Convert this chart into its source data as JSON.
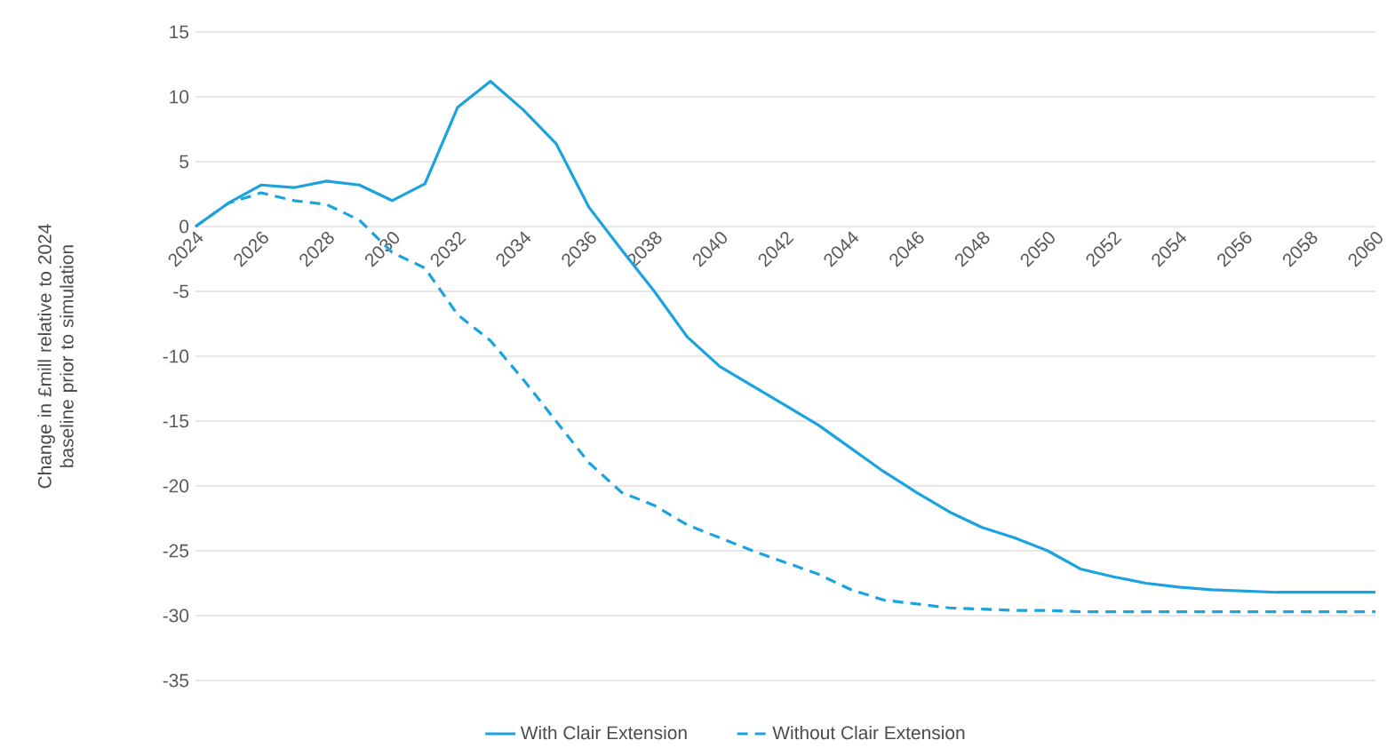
{
  "chart_data": {
    "type": "line",
    "ylabel": "Change in £mill relative to 2024 baseline prior to simulation",
    "x": [
      2024,
      2025,
      2026,
      2027,
      2028,
      2029,
      2030,
      2031,
      2032,
      2033,
      2034,
      2035,
      2036,
      2037,
      2038,
      2039,
      2040,
      2041,
      2042,
      2043,
      2044,
      2045,
      2046,
      2047,
      2048,
      2049,
      2050,
      2051,
      2052,
      2053,
      2054,
      2055,
      2056,
      2057,
      2058,
      2059,
      2060
    ],
    "series": [
      {
        "name": "With Clair Extension",
        "color": "#1aa3df",
        "line_style": "solid",
        "values": [
          0,
          1.8,
          3.2,
          3.0,
          3.5,
          3.2,
          2.0,
          3.3,
          9.2,
          11.2,
          9.0,
          6.4,
          1.5,
          -1.8,
          -5,
          -8.5,
          -10.8,
          -12.3,
          -13.8,
          -15.3,
          -17.1,
          -18.9,
          -20.5,
          -22,
          -23.2,
          -24,
          -25,
          -26.4,
          -27,
          -27.5,
          -27.8,
          -28,
          -28.1,
          -28.2,
          -28.2,
          -28.2,
          -28.2
        ]
      },
      {
        "name": "Without Clair Extension",
        "color": "#1aa3df",
        "line_style": "dashed",
        "values": [
          0,
          1.8,
          2.6,
          2.0,
          1.7,
          0.5,
          -2.0,
          -3.2,
          -6.8,
          -8.8,
          -11.8,
          -15,
          -18.2,
          -20.5,
          -21.5,
          -23,
          -24,
          -25,
          -25.9,
          -26.8,
          -28,
          -28.8,
          -29.1,
          -29.4,
          -29.5,
          -29.6,
          -29.6,
          -29.7,
          -29.7,
          -29.7,
          -29.7,
          -29.7,
          -29.7,
          -29.7,
          -29.7,
          -29.7,
          -29.7
        ]
      }
    ],
    "xlim": [
      2024,
      2060
    ],
    "xticks": [
      2024,
      2026,
      2028,
      2030,
      2032,
      2034,
      2036,
      2038,
      2040,
      2042,
      2044,
      2046,
      2048,
      2050,
      2052,
      2054,
      2056,
      2058,
      2060
    ],
    "ylim": [
      -35,
      15
    ],
    "yticks": [
      -35,
      -30,
      -25,
      -20,
      -15,
      -10,
      -5,
      0,
      5,
      10,
      15
    ],
    "grid": "y",
    "legend": "bottom",
    "marker": "none"
  }
}
